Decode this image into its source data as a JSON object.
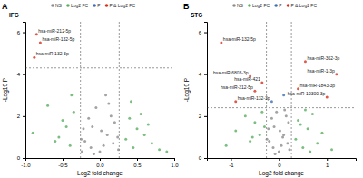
{
  "chart_data": [
    {
      "type": "scatter",
      "panel_label": "A",
      "title": "IFG",
      "x_label": "Log2 fold change",
      "y_label": "-Log10 P",
      "xlim": [
        -1,
        1
      ],
      "xticks": [
        {
          "value": -1,
          "label": "-1.0"
        },
        -0.5,
        {
          "value": 0,
          "label": "0.0"
        },
        0.5,
        {
          "value": 1,
          "label": "1.0"
        }
      ],
      "ylim": [
        0,
        6.5
      ],
      "yticks": [
        0,
        2,
        4,
        6
      ],
      "grid": false,
      "legend": "top",
      "vlines": [
        -0.26,
        0.26
      ],
      "hlines": [
        4.3
      ],
      "series": [
        {
          "name": "NS",
          "color": "#8c8c8c",
          "x": [
            -0.2,
            -0.1,
            0,
            0.1,
            0.15,
            -0.05,
            0.05,
            0.2,
            -0.25,
            0.25,
            -0.15,
            0.12,
            -0.08,
            0.02,
            0.18,
            -0.22,
            0.08,
            -0.12,
            0.24,
            -0.24
          ],
          "values": [
            0.8,
            1.5,
            0.3,
            1.1,
            2.0,
            2.4,
            0.6,
            1.7,
            0.9,
            0.4,
            1.9,
            2.6,
            0.2,
            1.3,
            0.7,
            1.4,
            3.0,
            0.5,
            1.0,
            0.3
          ]
        },
        {
          "name": "Log2 FC",
          "color": "#5aae61",
          "x": [
            -0.9,
            -0.7,
            -0.6,
            -0.5,
            -0.45,
            -0.4,
            -0.35,
            0.35,
            0.4,
            0.45,
            0.5,
            0.6,
            0.7,
            0.8,
            0.9,
            -0.55,
            0.55,
            -0.38,
            0.42,
            0.65
          ],
          "values": [
            1.2,
            2.5,
            0.8,
            1.8,
            1.5,
            0.6,
            2.2,
            0.9,
            1.9,
            0.5,
            1.4,
            1.1,
            0.7,
            0.4,
            0.3,
            1.0,
            2.1,
            3.0,
            2.7,
            1.6
          ]
        },
        {
          "name": "P",
          "color": "#3b6fb6",
          "x": [],
          "values": []
        },
        {
          "name": "P & Log2 FC",
          "color": "#d7301f",
          "x": [
            -0.85,
            -0.8,
            -0.88
          ],
          "values": [
            5.9,
            5.5,
            4.8
          ]
        }
      ],
      "annotations": [
        {
          "text": "hsa-miR-212-5p",
          "x": -0.85,
          "y": 5.9
        },
        {
          "text": "hsa-miR-132-5p",
          "x": -0.8,
          "y": 5.5
        },
        {
          "text": "hsa-miR-132-3p",
          "x": -0.88,
          "y": 4.8
        }
      ]
    },
    {
      "type": "scatter",
      "panel_label": "B",
      "title": "STG",
      "x_label": "Log2 fold change",
      "y_label": "-Log10 P",
      "xlim": [
        -1.5,
        1.6
      ],
      "xticks": [
        -1,
        0,
        1
      ],
      "ylim": [
        0,
        6.5
      ],
      "yticks": [
        0,
        2,
        4,
        6
      ],
      "grid": false,
      "legend": "top",
      "vlines": [
        -0.26,
        0.26
      ],
      "hlines": [
        2.4
      ],
      "series": [
        {
          "name": "NS",
          "color": "#8c8c8c",
          "x": [
            -0.2,
            -0.1,
            0,
            0.1,
            0.15,
            -0.05,
            0.05,
            0.2,
            -0.25,
            0.22,
            -0.15,
            0.12,
            -0.08,
            0.02,
            0.18,
            -0.22,
            0.08,
            -0.12
          ],
          "values": [
            0.8,
            1.5,
            0.3,
            1.1,
            2.0,
            2.2,
            0.6,
            1.7,
            0.9,
            0.4,
            1.9,
            2.3,
            0.2,
            1.3,
            0.7,
            1.4,
            1.0,
            0.5
          ]
        },
        {
          "name": "Log2 FC",
          "color": "#5aae61",
          "x": [
            -1.1,
            -0.9,
            -0.7,
            -0.6,
            -0.5,
            -0.4,
            -0.35,
            0.35,
            0.4,
            0.5,
            0.6,
            0.7,
            0.8,
            0.9,
            1.1,
            -0.55,
            0.55,
            -0.3,
            0.45,
            0.65
          ],
          "values": [
            0.6,
            1.3,
            2.0,
            0.8,
            1.7,
            1.1,
            2.2,
            0.9,
            1.8,
            0.5,
            1.4,
            2.1,
            0.7,
            1.2,
            0.4,
            1.0,
            2.3,
            1.5,
            1.6,
            0.3
          ]
        },
        {
          "name": "P",
          "color": "#3b6fb6",
          "x": [
            0.1,
            -0.15
          ],
          "values": [
            3.0,
            2.7
          ]
        },
        {
          "name": "P & Log2 FC",
          "color": "#d7301f",
          "x": [
            -1.2,
            0.55,
            1.2,
            -0.6,
            -0.35,
            -0.5,
            1.0,
            -0.9,
            0.4
          ],
          "values": [
            5.5,
            4.6,
            4.0,
            3.9,
            3.6,
            3.2,
            2.9,
            2.7,
            3.3
          ]
        }
      ],
      "annotations": [
        {
          "text": "hsa-miR-132-5p",
          "x": -1.2,
          "y": 5.5
        },
        {
          "text": "hsa-miR-362-3p",
          "x": 0.55,
          "y": 4.6
        },
        {
          "text": "hsa-miR-1-3p",
          "x": 1.2,
          "y": 4.0
        },
        {
          "text": "hsa-miR-6803-3p",
          "x": -0.6,
          "y": 3.9
        },
        {
          "text": "hsa-miR-421",
          "x": -0.35,
          "y": 3.6
        },
        {
          "text": "hsa-miR-212-5p",
          "x": -0.5,
          "y": 3.2
        },
        {
          "text": "hsa-miR-10300-3p",
          "x": 1.0,
          "y": 2.9
        },
        {
          "text": "hsa-miR-132-3p",
          "x": -0.9,
          "y": 2.7
        },
        {
          "text": "hsa-miR-1843-3p",
          "x": 0.4,
          "y": 3.3
        }
      ]
    }
  ]
}
